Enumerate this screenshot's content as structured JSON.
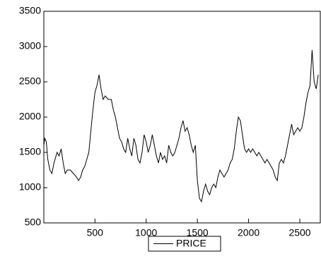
{
  "chart_data": {
    "type": "line",
    "x": [
      1,
      10,
      25,
      40,
      60,
      80,
      100,
      130,
      150,
      170,
      190,
      210,
      230,
      260,
      290,
      320,
      340,
      360,
      380,
      400,
      420,
      440,
      460,
      480,
      500,
      520,
      540,
      560,
      580,
      600,
      630,
      660,
      680,
      700,
      720,
      740,
      760,
      780,
      800,
      820,
      840,
      860,
      880,
      900,
      920,
      940,
      960,
      980,
      1000,
      1020,
      1040,
      1060,
      1080,
      1100,
      1120,
      1140,
      1160,
      1180,
      1200,
      1220,
      1240,
      1260,
      1280,
      1300,
      1320,
      1340,
      1360,
      1380,
      1400,
      1420,
      1440,
      1460,
      1480,
      1500,
      1520,
      1540,
      1560,
      1580,
      1600,
      1620,
      1640,
      1660,
      1680,
      1700,
      1720,
      1740,
      1760,
      1780,
      1800,
      1820,
      1840,
      1860,
      1880,
      1900,
      1920,
      1940,
      1960,
      1980,
      2000,
      2020,
      2040,
      2060,
      2080,
      2100,
      2120,
      2140,
      2160,
      2180,
      2200,
      2220,
      2240,
      2260,
      2280,
      2300,
      2320,
      2340,
      2360,
      2380,
      2400,
      2420,
      2440,
      2460,
      2480,
      2500,
      2520,
      2540,
      2560,
      2580,
      2600,
      2620,
      2640,
      2660,
      2680
    ],
    "series": [
      {
        "name": "PRICE",
        "color": "#000000",
        "values": [
          1600,
          1700,
          1650,
          1400,
          1250,
          1200,
          1350,
          1500,
          1450,
          1550,
          1350,
          1200,
          1250,
          1250,
          1200,
          1150,
          1100,
          1150,
          1250,
          1300,
          1400,
          1500,
          1800,
          2100,
          2350,
          2450,
          2600,
          2400,
          2250,
          2300,
          2250,
          2250,
          2100,
          2000,
          1850,
          1700,
          1650,
          1550,
          1500,
          1700,
          1550,
          1450,
          1700,
          1600,
          1400,
          1350,
          1500,
          1750,
          1650,
          1500,
          1600,
          1750,
          1600,
          1450,
          1350,
          1500,
          1400,
          1450,
          1350,
          1600,
          1500,
          1450,
          1500,
          1600,
          1700,
          1850,
          1950,
          1800,
          1850,
          1750,
          1600,
          1500,
          1600,
          1100,
          850,
          800,
          950,
          1050,
          950,
          900,
          1000,
          1050,
          1000,
          1150,
          1250,
          1200,
          1150,
          1200,
          1250,
          1350,
          1400,
          1550,
          1800,
          2000,
          1950,
          1750,
          1550,
          1500,
          1550,
          1500,
          1550,
          1500,
          1450,
          1500,
          1450,
          1400,
          1350,
          1400,
          1350,
          1300,
          1250,
          1150,
          1100,
          1350,
          1400,
          1350,
          1450,
          1600,
          1750,
          1900,
          1750,
          1800,
          1850,
          1800,
          1850,
          2000,
          2200,
          2350,
          2450,
          2950,
          2500,
          2400,
          2600
        ]
      }
    ],
    "xlim": [
      1,
      2700
    ],
    "xticks": [
      500,
      1000,
      1500,
      2000,
      2500
    ],
    "ylim": [
      500,
      3500
    ],
    "yticks": [
      500,
      1000,
      1500,
      2000,
      2500,
      3000,
      3500
    ],
    "legend": "bottom"
  }
}
